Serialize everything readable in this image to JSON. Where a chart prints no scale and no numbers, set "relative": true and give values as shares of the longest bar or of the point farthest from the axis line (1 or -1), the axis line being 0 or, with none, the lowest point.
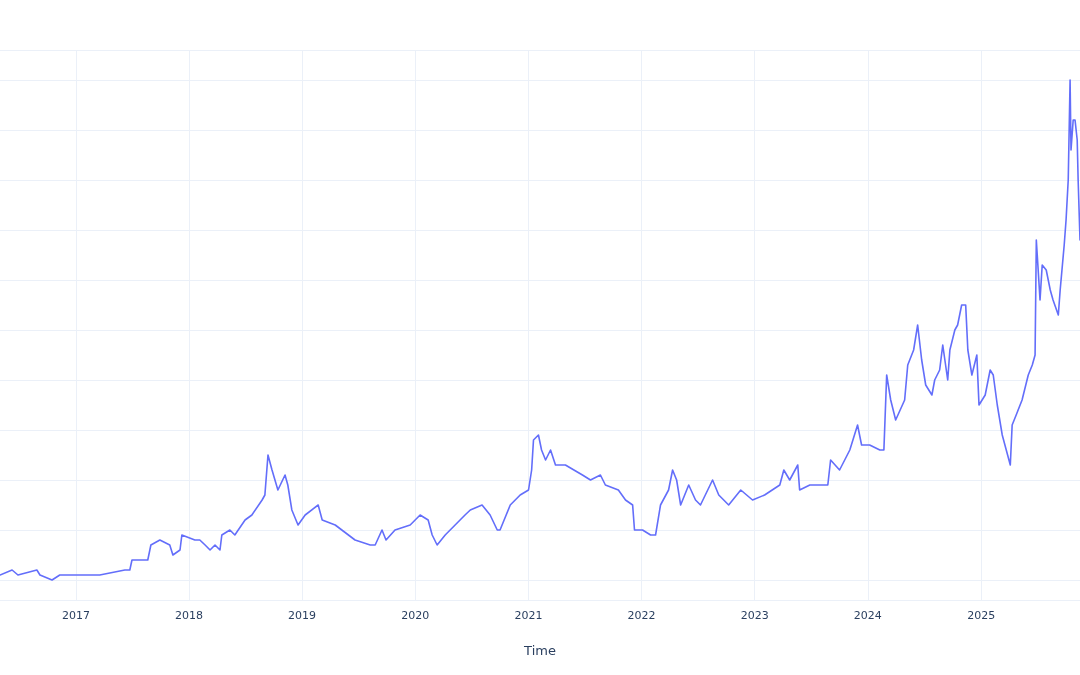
{
  "chart_data": {
    "type": "line",
    "xlabel": "Time",
    "relative": true,
    "color": "#636efa",
    "grid": true,
    "marker": "none",
    "line_style": "solid",
    "xlim": [
      "2016-05-01",
      "2025-11-16"
    ],
    "xticks": [
      {
        "value": "2017-01-01",
        "label": "2017"
      },
      {
        "value": "2018-01-01",
        "label": "2018"
      },
      {
        "value": "2019-01-01",
        "label": "2019"
      },
      {
        "value": "2020-01-01",
        "label": "2020"
      },
      {
        "value": "2021-01-01",
        "label": "2021"
      },
      {
        "value": "2022-01-01",
        "label": "2022"
      },
      {
        "value": "2023-01-01",
        "label": "2023"
      },
      {
        "value": "2024-01-01",
        "label": "2024"
      },
      {
        "value": "2025-01-01",
        "label": "2025"
      }
    ],
    "x": [
      "2016-05-01",
      "2016-06-09",
      "2016-06-28",
      "2016-08-28",
      "2016-09-07",
      "2016-10-16",
      "2016-11-10",
      "2017-01-01",
      "2017-01-20",
      "2017-03-19",
      "2017-06-08",
      "2017-06-24",
      "2017-07-01",
      "2017-08-21",
      "2017-08-31",
      "2017-09-29",
      "2017-10-31",
      "2017-11-10",
      "2017-12-03",
      "2017-12-09",
      "2018-01-20",
      "2018-02-05",
      "2018-02-22",
      "2018-03-10",
      "2018-03-26",
      "2018-04-11",
      "2018-04-17",
      "2018-05-13",
      "2018-05-29",
      "2018-07-01",
      "2018-07-23",
      "2018-08-25",
      "2018-09-03",
      "2018-09-13",
      "2018-09-26",
      "2018-10-15",
      "2018-11-07",
      "2018-11-16",
      "2018-11-29",
      "2018-12-19",
      "2019-01-11",
      "2019-02-22",
      "2019-03-07",
      "2019-04-18",
      "2019-06-21",
      "2019-08-09",
      "2019-08-25",
      "2019-09-16",
      "2019-09-29",
      "2019-10-28",
      "2019-12-16",
      "2020-01-17",
      "2020-02-12",
      "2020-02-25",
      "2020-03-12",
      "2020-04-07",
      "2020-05-09",
      "2020-06-10",
      "2020-06-27",
      "2020-08-04",
      "2020-08-30",
      "2020-09-22",
      "2020-10-01",
      "2020-11-03",
      "2020-12-05",
      "2021-01-01",
      "2021-01-11",
      "2021-01-17",
      "2021-02-02",
      "2021-02-12",
      "2021-02-25",
      "2021-03-13",
      "2021-03-29",
      "2021-04-30",
      "2021-06-24",
      "2021-07-20",
      "2021-08-21",
      "2021-09-06",
      "2021-10-18",
      "2021-11-10",
      "2021-12-03",
      "2021-12-09",
      "2022-01-04",
      "2022-01-30",
      "2022-02-15",
      "2022-03-03",
      "2022-03-29",
      "2022-04-11",
      "2022-04-24",
      "2022-05-07",
      "2022-06-02",
      "2022-06-24",
      "2022-07-10",
      "2022-08-18",
      "2022-09-07",
      "2022-10-09",
      "2022-11-17",
      "2022-12-25",
      "2023-02-02",
      "2023-03-23",
      "2023-04-05",
      "2023-04-24",
      "2023-05-20",
      "2023-05-26",
      "2023-06-28",
      "2023-08-25",
      "2023-09-03",
      "2023-10-02",
      "2023-11-04",
      "2023-11-29",
      "2023-12-12",
      "2024-01-07",
      "2024-02-09",
      "2024-02-22",
      "2024-03-02",
      "2024-03-15",
      "2024-03-31",
      "2024-04-29",
      "2024-05-09",
      "2024-05-28",
      "2024-06-10",
      "2024-06-23",
      "2024-07-06",
      "2024-07-26",
      "2024-08-04",
      "2024-08-20",
      "2024-08-30",
      "2024-09-15",
      "2024-09-22",
      "2024-10-08",
      "2024-10-17",
      "2024-10-30",
      "2024-11-12",
      "2024-11-19",
      "2024-12-02",
      "2024-12-18",
      "2024-12-25",
      "2025-01-14",
      "2025-01-30",
      "2025-02-09",
      "2025-02-22",
      "2025-03-10",
      "2025-03-23",
      "2025-04-05",
      "2025-04-11",
      "2025-04-24",
      "2025-05-13",
      "2025-06-02",
      "2025-06-15",
      "2025-06-24",
      "2025-06-28",
      "2025-07-10",
      "2025-07-17",
      "2025-07-30",
      "2025-08-12",
      "2025-08-21",
      "2025-09-07",
      "2025-09-13",
      "2025-09-26",
      "2025-10-02",
      "2025-10-09",
      "2025-10-15",
      "2025-10-18",
      "2025-10-25",
      "2025-10-31",
      "2025-11-07",
      "2025-11-10",
      "2025-11-16"
    ],
    "values": [
      0.01,
      0.02,
      0.01,
      0.02,
      0.01,
      0.0,
      0.01,
      0.01,
      0.01,
      0.01,
      0.02,
      0.02,
      0.04,
      0.04,
      0.07,
      0.08,
      0.07,
      0.05,
      0.06,
      0.09,
      0.08,
      0.08,
      0.07,
      0.06,
      0.07,
      0.06,
      0.09,
      0.1,
      0.09,
      0.12,
      0.13,
      0.16,
      0.17,
      0.25,
      0.22,
      0.18,
      0.21,
      0.19,
      0.14,
      0.11,
      0.13,
      0.15,
      0.12,
      0.11,
      0.08,
      0.07,
      0.07,
      0.1,
      0.08,
      0.1,
      0.11,
      0.13,
      0.12,
      0.09,
      0.07,
      0.09,
      0.11,
      0.13,
      0.14,
      0.15,
      0.13,
      0.1,
      0.1,
      0.15,
      0.17,
      0.18,
      0.22,
      0.28,
      0.29,
      0.26,
      0.24,
      0.26,
      0.23,
      0.23,
      0.21,
      0.2,
      0.21,
      0.19,
      0.18,
      0.16,
      0.15,
      0.1,
      0.1,
      0.09,
      0.09,
      0.15,
      0.18,
      0.22,
      0.2,
      0.15,
      0.19,
      0.16,
      0.15,
      0.2,
      0.17,
      0.15,
      0.18,
      0.16,
      0.17,
      0.19,
      0.22,
      0.2,
      0.23,
      0.18,
      0.19,
      0.19,
      0.24,
      0.22,
      0.26,
      0.31,
      0.27,
      0.27,
      0.26,
      0.26,
      0.41,
      0.36,
      0.32,
      0.36,
      0.43,
      0.46,
      0.51,
      0.44,
      0.39,
      0.37,
      0.4,
      0.42,
      0.47,
      0.4,
      0.46,
      0.5,
      0.51,
      0.55,
      0.55,
      0.46,
      0.41,
      0.45,
      0.35,
      0.37,
      0.42,
      0.41,
      0.35,
      0.29,
      0.26,
      0.23,
      0.31,
      0.33,
      0.36,
      0.41,
      0.43,
      0.45,
      0.68,
      0.56,
      0.63,
      0.62,
      0.58,
      0.56,
      0.53,
      0.58,
      0.67,
      0.72,
      0.8,
      1.0,
      0.86,
      0.92,
      0.92,
      0.88,
      0.8,
      0.68
    ]
  }
}
